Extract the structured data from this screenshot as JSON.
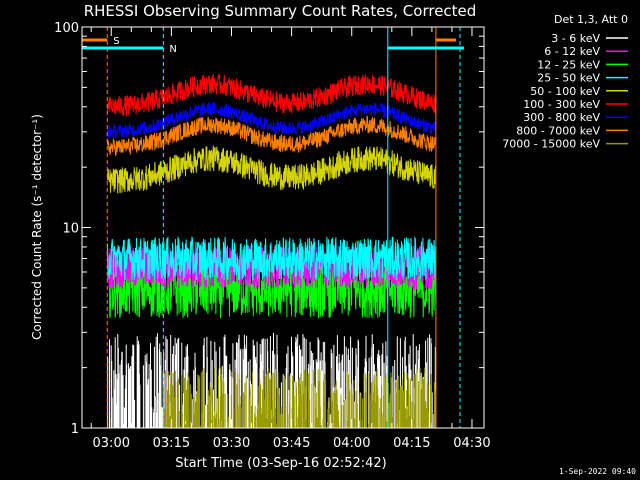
{
  "chart_data": {
    "type": "line",
    "title": "RHESSI Observing Summary Count Rates, Corrected",
    "xlabel": "Start Time (03-Sep-16 02:52:42)",
    "ylabel": "Corrected Count Rate (s⁻¹ detector⁻¹)",
    "y_scale": "log",
    "ylim": [
      1,
      100
    ],
    "yticks": [
      {
        "value": 1,
        "label": "1"
      },
      {
        "value": 10,
        "label": "10"
      },
      {
        "value": 100,
        "label": "100"
      }
    ],
    "xlim": [
      "02:52:42",
      "04:33:00"
    ],
    "xticks": [
      "03:00",
      "03:15",
      "03:30",
      "03:45",
      "04:00",
      "04:15",
      "04:30"
    ],
    "legend_title": "Det 1,3, Att 0",
    "legend_position": "right",
    "footer_date": "1-Sep-2022 09:40",
    "background": "#000000",
    "series": [
      {
        "name": "3 - 6 keV",
        "color": "#ffffff",
        "level": 2.0
      },
      {
        "name": "6 - 12 keV",
        "color": "#ff00ff",
        "level": 6.3
      },
      {
        "name": "12 - 25 keV",
        "color": "#00ff00",
        "level": 5.0
      },
      {
        "name": "25 - 50 keV",
        "color": "#00ffff",
        "level": 7.0
      },
      {
        "name": "50 - 100 keV",
        "color": "#d4d400",
        "level": 17
      },
      {
        "name": "100 - 300 keV",
        "color": "#ff0000",
        "level": 40
      },
      {
        "name": "300 - 800 keV",
        "color": "#0000ff",
        "level": 30
      },
      {
        "name": "800 - 7000 keV",
        "color": "#ff8000",
        "level": 25
      },
      {
        "name": "7000 - 15000 keV",
        "color": "#999900",
        "level": 1.5
      }
    ],
    "flags": [
      {
        "label": "S",
        "color": "#ff8000",
        "start": "02:52:42",
        "end": "02:59:00"
      },
      {
        "label": "N",
        "color": "#00ffff",
        "start": "02:52:42",
        "end": "03:13:00"
      }
    ],
    "vertical_markers": [
      {
        "time": "02:59:00",
        "color": "#ff8000",
        "style": "dashed"
      },
      {
        "time": "03:13:00",
        "color": "#00ffff",
        "style": "dashed"
      },
      {
        "time": "04:09:00",
        "color": "#00ffff",
        "style": "solid"
      },
      {
        "time": "04:21:00",
        "color": "#ff8000",
        "style": "solid"
      },
      {
        "time": "04:27:00",
        "color": "#00ffff",
        "style": "dashed"
      }
    ]
  }
}
